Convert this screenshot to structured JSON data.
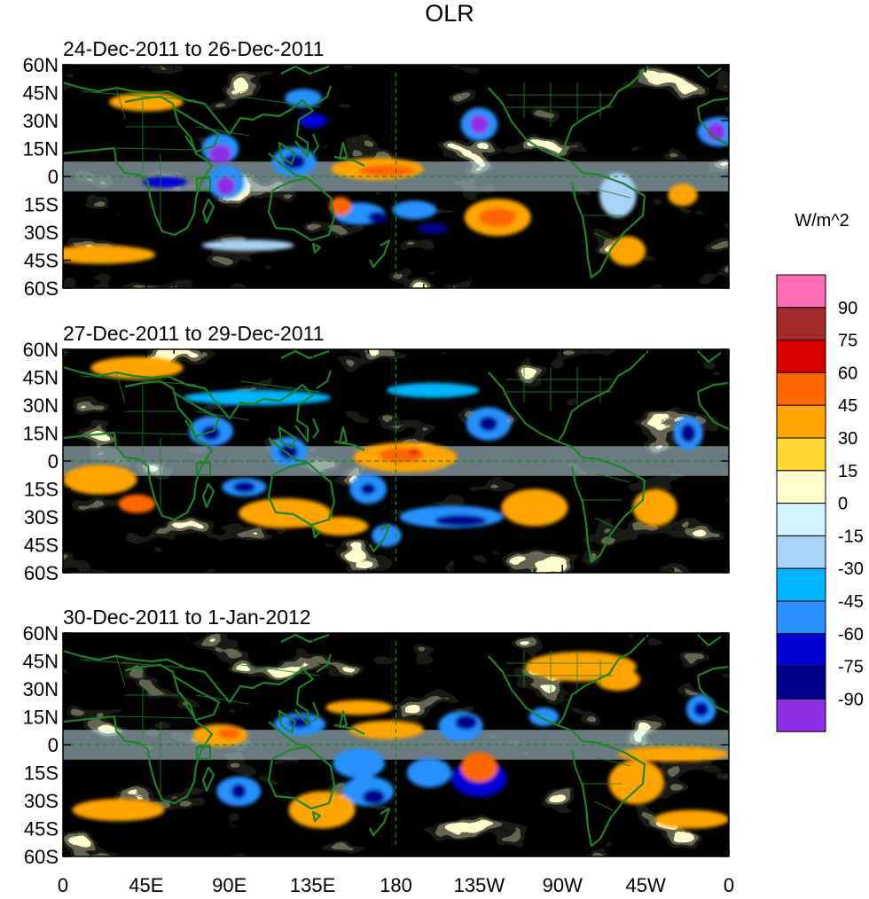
{
  "chart_data": {
    "type": "heatmap",
    "title": "OLR",
    "units": "W/m^2",
    "panels": [
      {
        "subtitle": "24-Dec-2011 to 26-Dec-2011"
      },
      {
        "subtitle": "27-Dec-2011 to 29-Dec-2011"
      },
      {
        "subtitle": "30-Dec-2011 to 1-Jan-2012"
      }
    ],
    "y_ticks": [
      "60N",
      "45N",
      "30N",
      "15N",
      "0",
      "15S",
      "30S",
      "45S",
      "60S"
    ],
    "x_ticks": [
      "0",
      "45E",
      "90E",
      "135E",
      "180",
      "135W",
      "90W",
      "45W",
      "0"
    ],
    "lat_range": [
      -60,
      60
    ],
    "lon_range": [
      0,
      360
    ],
    "colorbar": {
      "levels": [
        90,
        75,
        60,
        45,
        30,
        15,
        0,
        -15,
        -30,
        -45,
        -60,
        -75,
        -90
      ],
      "colors": [
        "#ff6bb5",
        "#a52a2a",
        "#d90000",
        "#ff6600",
        "#ffa400",
        "#ffd932",
        "#fffccc",
        "#d2f4ff",
        "#a8d2f8",
        "#00b4ff",
        "#2890ff",
        "#0000d5",
        "#00008c",
        "#8c2ee6"
      ]
    },
    "reference_lines": [
      "equator",
      "180"
    ],
    "colors": {
      "coast": "#1e8228",
      "axis": "#000000"
    }
  }
}
